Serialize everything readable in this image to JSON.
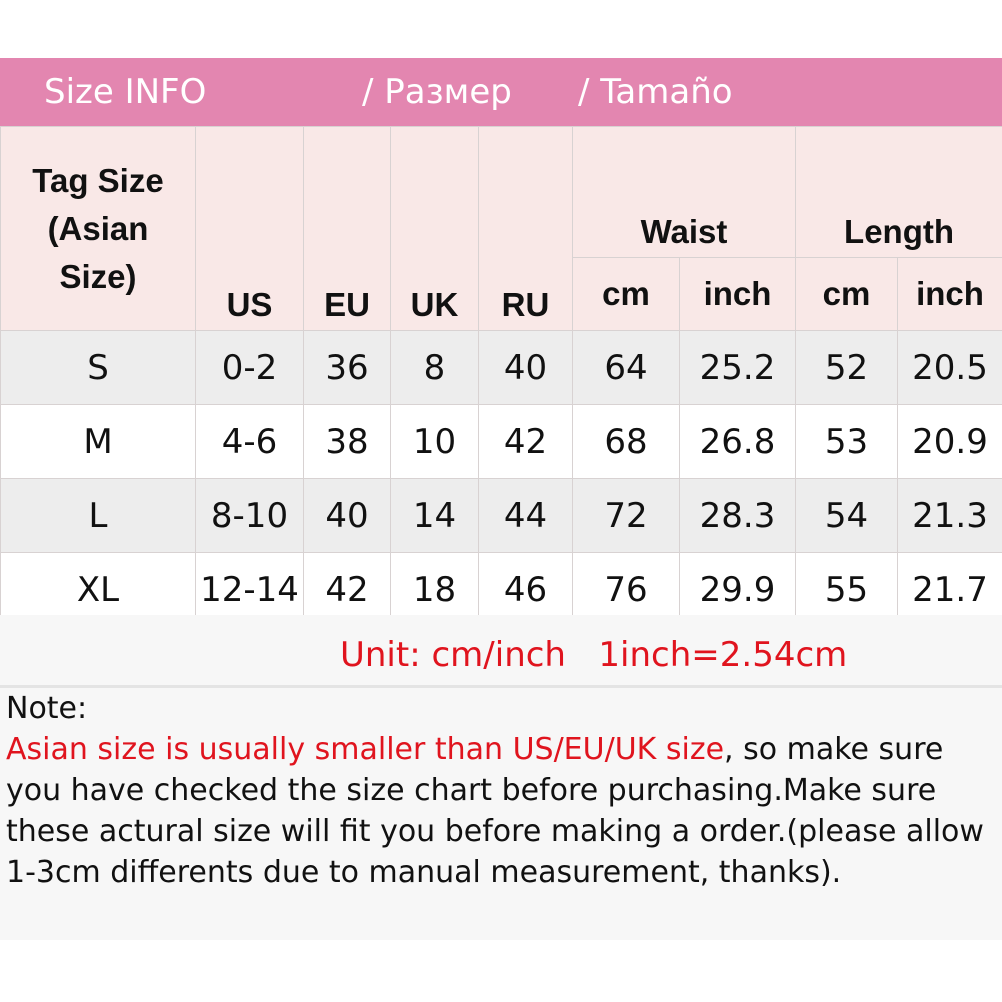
{
  "banner": {
    "title": "Size INFO",
    "ru": "/  Размер",
    "es": "/  Tamaño",
    "color": "#e386b0"
  },
  "header": {
    "tag": "Tag Size (Asian Size)",
    "tag_lines": [
      "Tag Size",
      "(Asian",
      "Size)"
    ],
    "us": "US",
    "eu": "EU",
    "uk": "UK",
    "ru": "RU",
    "waist": "Waist",
    "length": "Length",
    "cm": "cm",
    "inch": "inch"
  },
  "rows": [
    [
      "S",
      "0-2",
      "36",
      "8",
      "40",
      "64",
      "25.2",
      "52",
      "20.5"
    ],
    [
      "M",
      "4-6",
      "38",
      "10",
      "42",
      "68",
      "26.8",
      "53",
      "20.9"
    ],
    [
      "L",
      "8-10",
      "40",
      "14",
      "44",
      "72",
      "28.3",
      "54",
      "21.3"
    ],
    [
      "XL",
      "12-14",
      "42",
      "18",
      "46",
      "76",
      "29.9",
      "55",
      "21.7"
    ]
  ],
  "unit": "Unit: cm/inch   1inch=2.54cm",
  "note": {
    "label": "Note:",
    "red": "Asian size is usually smaller than US/EU/UK size",
    "rest": ", so make sure you have checked the size chart before purchasing.Make sure these actural size will fit you before making a order.(please allow 1-3cm differents due to manual measurement, thanks)."
  },
  "colors": {
    "accent_red": "#e0141e",
    "header_bg": "#f9e8e7"
  }
}
